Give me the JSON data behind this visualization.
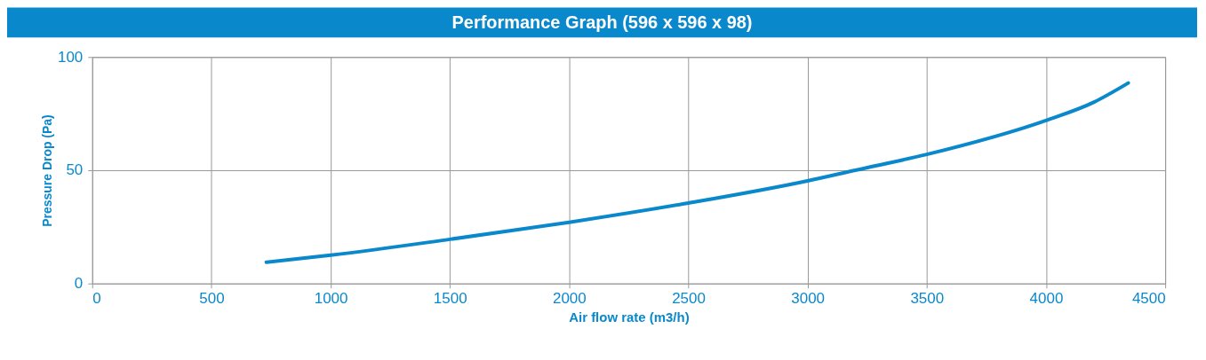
{
  "chart_data": {
    "type": "line",
    "title": "Performance Graph (596 x 596 x 98)",
    "xlabel": "Air flow rate (m3/h)",
    "ylabel": "Pressure Drop (Pa)",
    "x": [
      730,
      1000,
      1500,
      2000,
      2500,
      3000,
      3200,
      3500,
      4000,
      4200,
      4345
    ],
    "series": [
      {
        "color": "#0a88cc",
        "values": [
          9.4,
          12.5,
          19.5,
          27,
          35.5,
          45.3,
          50,
          57,
          72,
          80,
          88.5
        ]
      }
    ],
    "xlim": [
      0,
      4500
    ],
    "xticks": [
      0,
      500,
      1000,
      1500,
      2000,
      2500,
      3000,
      3500,
      4000,
      4500
    ],
    "ylim": [
      0,
      100
    ],
    "yticks": [
      0,
      50,
      100
    ],
    "grid": true,
    "legend": false,
    "marker": "none",
    "line_style": "solid"
  }
}
